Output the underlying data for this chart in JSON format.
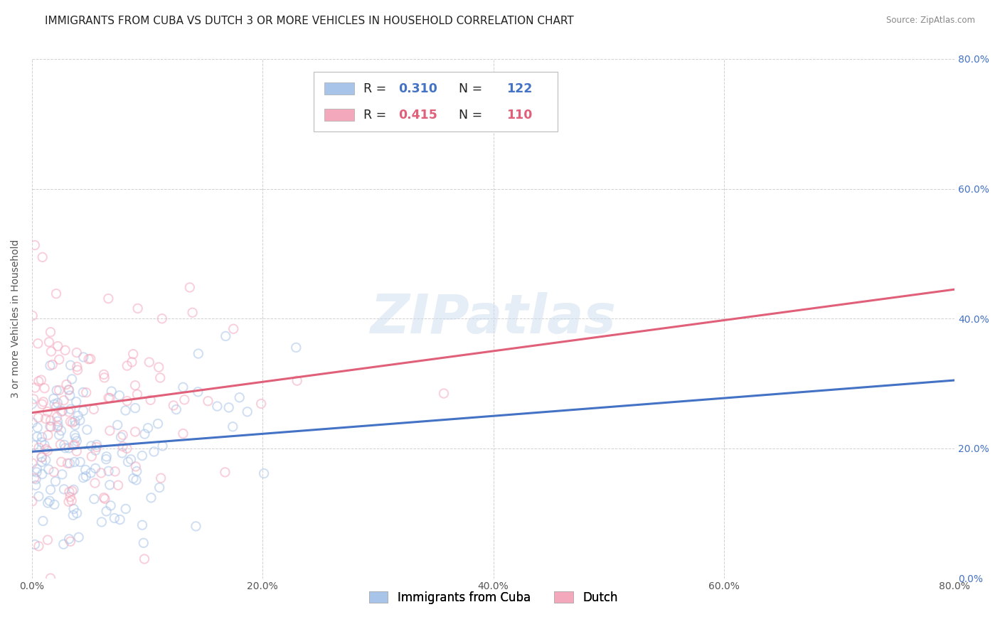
{
  "title": "IMMIGRANTS FROM CUBA VS DUTCH 3 OR MORE VEHICLES IN HOUSEHOLD CORRELATION CHART",
  "source": "Source: ZipAtlas.com",
  "ylabel": "3 or more Vehicles in Household",
  "xlim": [
    0.0,
    0.8
  ],
  "ylim": [
    0.0,
    0.8
  ],
  "xticks": [
    0.0,
    0.2,
    0.4,
    0.6,
    0.8
  ],
  "yticks": [
    0.0,
    0.2,
    0.4,
    0.6,
    0.8
  ],
  "cuba_color": "#a8c4e8",
  "dutch_color": "#f4a8bc",
  "cuba_line_color": "#4472c4",
  "dutch_line_color": "#e0607a",
  "cuba_R": 0.31,
  "cuba_N": 122,
  "dutch_R": 0.415,
  "dutch_N": 110,
  "legend_label_cuba": "Immigrants from Cuba",
  "legend_label_dutch": "Dutch",
  "watermark": "ZIPatlas",
  "background_color": "#ffffff",
  "grid_color": "#cccccc",
  "title_fontsize": 11,
  "axis_label_fontsize": 10,
  "tick_fontsize": 10,
  "legend_fontsize": 12,
  "scatter_alpha": 0.55,
  "scatter_size": 80,
  "cuba_line_start_y": 0.195,
  "cuba_line_end_y": 0.305,
  "dutch_line_start_y": 0.255,
  "dutch_line_end_y": 0.445
}
